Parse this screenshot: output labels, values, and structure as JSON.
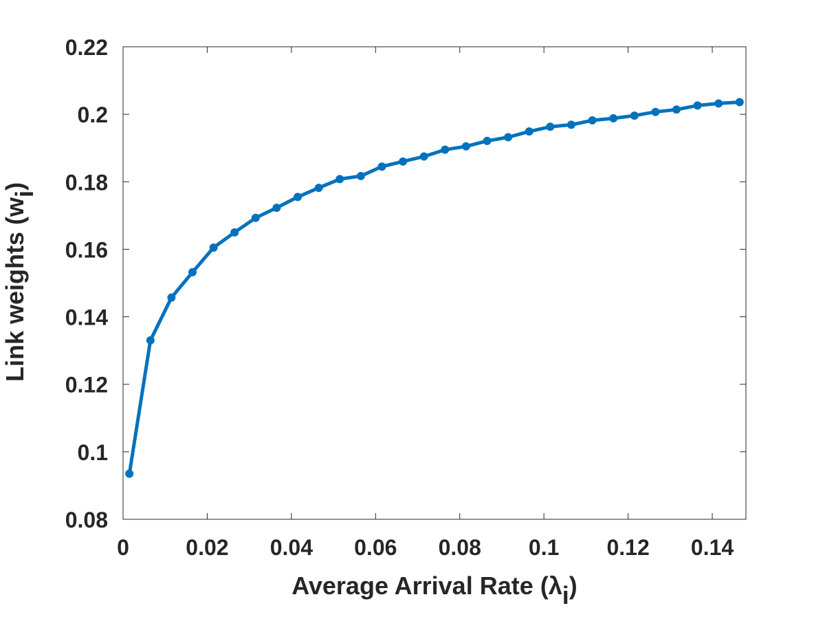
{
  "chart_data": {
    "type": "line",
    "xlabel": {
      "main": "Average Arrival Rate (λ",
      "sub": "i",
      "close": ")"
    },
    "ylabel": {
      "main": "Link weights (w",
      "sub": "i",
      "close": ")"
    },
    "xlim": [
      0,
      0.148
    ],
    "ylim": [
      0.08,
      0.22
    ],
    "xticks": [
      "0",
      "0.02",
      "0.04",
      "0.06",
      "0.08",
      "0.1",
      "0.12",
      "0.14"
    ],
    "xtick_values": [
      0,
      0.02,
      0.04,
      0.06,
      0.08,
      0.1,
      0.12,
      0.14
    ],
    "yticks": [
      "0.08",
      "0.1",
      "0.12",
      "0.14",
      "0.16",
      "0.18",
      "0.2",
      "0.22"
    ],
    "ytick_values": [
      0.08,
      0.1,
      0.12,
      0.14,
      0.16,
      0.18,
      0.2,
      0.22
    ],
    "grid": false,
    "series": [
      {
        "color": "#0072bd",
        "x": [
          0.0015,
          0.0065,
          0.0115,
          0.0165,
          0.0215,
          0.0265,
          0.0315,
          0.0365,
          0.0415,
          0.0465,
          0.0515,
          0.0565,
          0.0615,
          0.0665,
          0.0715,
          0.0765,
          0.0815,
          0.0865,
          0.0915,
          0.0965,
          0.1015,
          0.1065,
          0.1115,
          0.1165,
          0.1215,
          0.1265,
          0.1315,
          0.1365,
          0.1415,
          0.1465
        ],
        "y": [
          0.0935,
          0.133,
          0.1457,
          0.1532,
          0.1605,
          0.165,
          0.1693,
          0.1723,
          0.1755,
          0.1782,
          0.1808,
          0.1817,
          0.1845,
          0.186,
          0.1875,
          0.1895,
          0.1905,
          0.1921,
          0.1932,
          0.1949,
          0.1963,
          0.1969,
          0.1982,
          0.1988,
          0.1996,
          0.2007,
          0.2014,
          0.2026,
          0.2032,
          0.2036
        ]
      }
    ]
  }
}
